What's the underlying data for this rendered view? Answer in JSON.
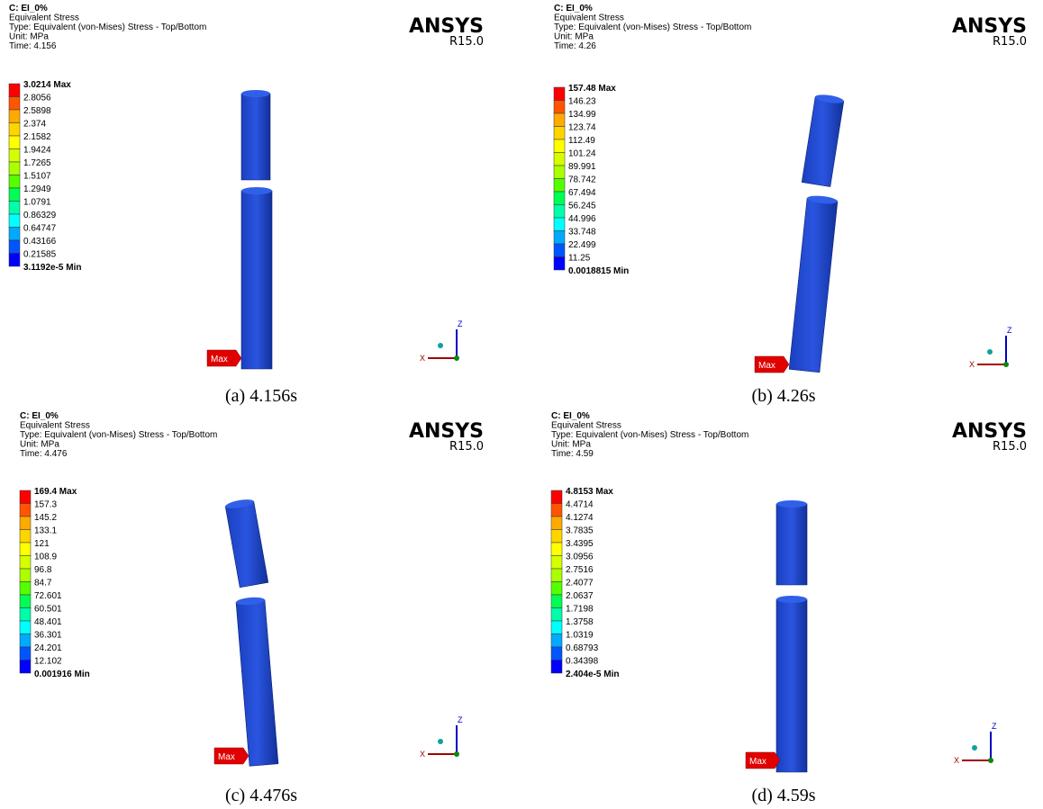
{
  "panels": [
    {
      "header": [
        "C: EI_0%",
        "Equivalent Stress",
        "Type: Equivalent (von-Mises) Stress - Top/Bottom",
        "Unit: MPa",
        "Time: 4.156"
      ],
      "legend": [
        "3.0214 Max",
        "2.8056",
        "2.5898",
        "2.374",
        "2.1582",
        "1.9424",
        "1.7265",
        "1.5107",
        "1.2949",
        "1.0791",
        "0.86329",
        "0.64747",
        "0.43166",
        "0.21585",
        "3.1192e-5 Min"
      ],
      "logo": "ANSYS",
      "version": "R15.0",
      "max_tag": "Max",
      "axis_z": "Z",
      "axis_x": "X",
      "caption": "(a) 4.156s"
    },
    {
      "header": [
        "C: EI_0%",
        "Equivalent Stress",
        "Type: Equivalent (von-Mises) Stress - Top/Bottom",
        "Unit: MPa",
        "Time: 4.26"
      ],
      "legend": [
        "157.48 Max",
        "146.23",
        "134.99",
        "123.74",
        "112.49",
        "101.24",
        "89.991",
        "78.742",
        "67.494",
        "56.245",
        "44.996",
        "33.748",
        "22.499",
        "11.25",
        "0.0018815 Min"
      ],
      "logo": "ANSYS",
      "version": "R15.0",
      "max_tag": "Max",
      "axis_z": "Z",
      "axis_x": "X",
      "caption": "(b) 4.26s"
    },
    {
      "header": [
        "C: EI_0%",
        "Equivalent Stress",
        "Type: Equivalent (von-Mises) Stress - Top/Bottom",
        "Unit: MPa",
        "Time: 4.476"
      ],
      "legend": [
        "169.4 Max",
        "157.3",
        "145.2",
        "133.1",
        "121",
        "108.9",
        "96.8",
        "84.7",
        "72.601",
        "60.501",
        "48.401",
        "36.301",
        "24.201",
        "12.102",
        "0.001916 Min"
      ],
      "logo": "ANSYS",
      "version": "R15.0",
      "max_tag": "Max",
      "axis_z": "Z",
      "axis_x": "X",
      "caption": "(c) 4.476s"
    },
    {
      "header": [
        "C: EI_0%",
        "Equivalent Stress",
        "Type: Equivalent (von-Mises) Stress - Top/Bottom",
        "Unit: MPa",
        "Time: 4.59"
      ],
      "legend": [
        "4.8153 Max",
        "4.4714",
        "4.1274",
        "3.7835",
        "3.4395",
        "3.0956",
        "2.7516",
        "2.4077",
        "2.0637",
        "1.7198",
        "1.3758",
        "1.0319",
        "0.68793",
        "0.34398",
        "2.404e-5 Min"
      ],
      "logo": "ANSYS",
      "version": "R15.0",
      "max_tag": "Max",
      "axis_z": "Z",
      "axis_x": "X",
      "caption": "(d) 4.59s"
    }
  ]
}
